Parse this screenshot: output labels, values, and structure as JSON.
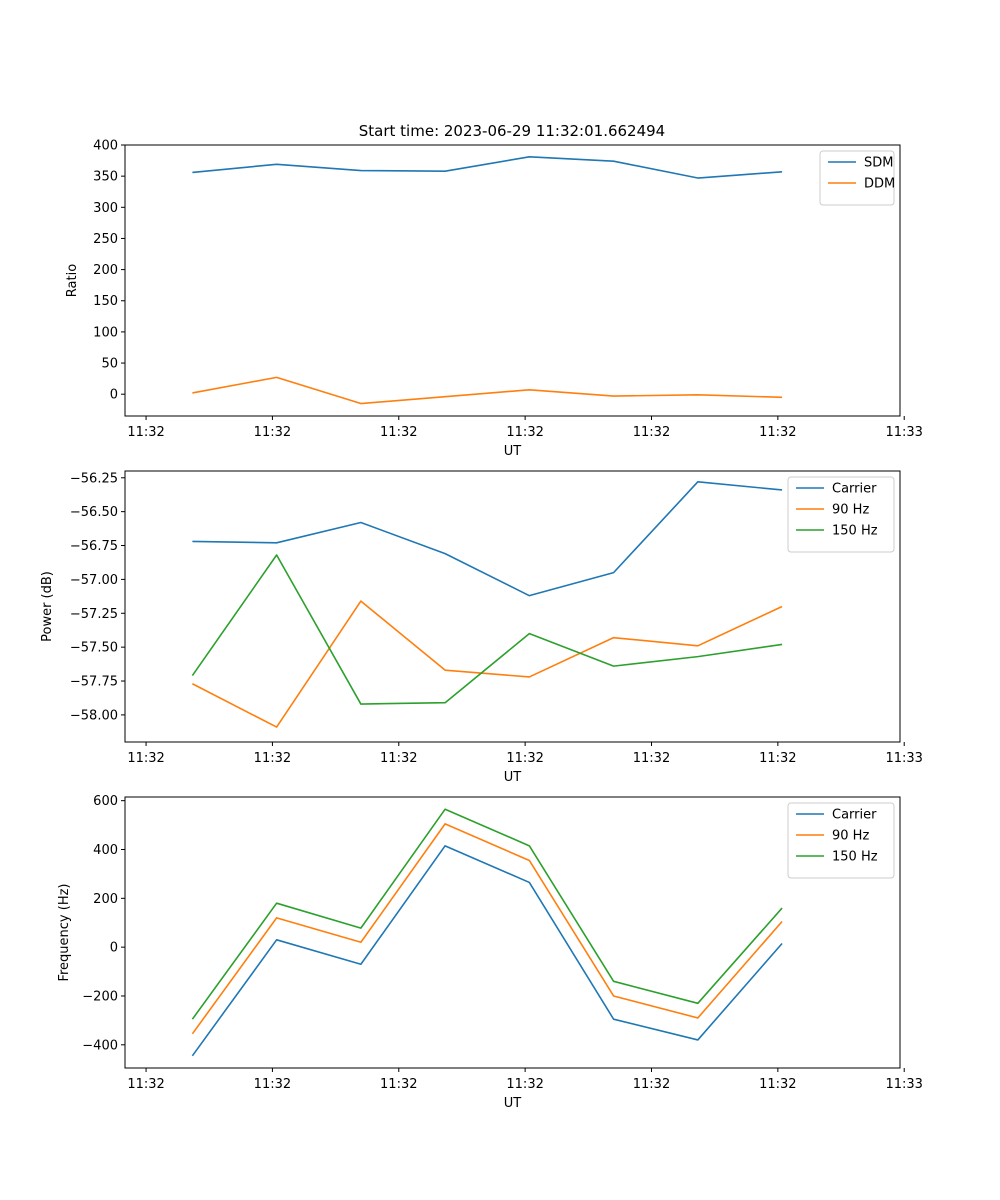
{
  "figure": {
    "title": "Start time: 2023-06-29 11:32:01.662494"
  },
  "colors": {
    "blue": "#1f77b4",
    "orange": "#ff7f0e",
    "green": "#2ca02c"
  },
  "chart_data": [
    {
      "type": "line",
      "title": "Start time: 2023-06-29 11:32:01.662494",
      "xlabel": "UT",
      "ylabel": "Ratio",
      "x": [
        1,
        2,
        3,
        4,
        5,
        6,
        7,
        8
      ],
      "xlim": [
        0.2,
        9.4
      ],
      "xticks": [
        0.45,
        1.95,
        3.45,
        4.95,
        6.45,
        7.95,
        9.45
      ],
      "xtick_labels": [
        "11:32",
        "11:32",
        "11:32",
        "11:32",
        "11:32",
        "11:32",
        "11:33"
      ],
      "ylim": [
        -35,
        400
      ],
      "yticks": [
        0,
        50,
        100,
        150,
        200,
        250,
        300,
        350,
        400
      ],
      "ytick_labels": [
        "0",
        "50",
        "100",
        "150",
        "200",
        "250",
        "300",
        "350",
        "400"
      ],
      "legend": "upper right",
      "series": [
        {
          "name": "SDM",
          "color": "#1f77b4",
          "values": [
            356,
            369,
            359,
            358,
            381,
            374,
            347,
            357
          ]
        },
        {
          "name": "DDM",
          "color": "#ff7f0e",
          "values": [
            2,
            27,
            -15,
            -4,
            7,
            -3,
            -1,
            -5
          ]
        }
      ]
    },
    {
      "type": "line",
      "xlabel": "UT",
      "ylabel": "Power (dB)",
      "x": [
        1,
        2,
        3,
        4,
        5,
        6,
        7,
        8
      ],
      "xlim": [
        0.2,
        9.4
      ],
      "xticks": [
        0.45,
        1.95,
        3.45,
        4.95,
        6.45,
        7.95,
        9.45
      ],
      "xtick_labels": [
        "11:32",
        "11:32",
        "11:32",
        "11:32",
        "11:32",
        "11:32",
        "11:33"
      ],
      "ylim": [
        -58.2,
        -56.2
      ],
      "yticks": [
        -58.0,
        -57.75,
        -57.5,
        -57.25,
        -57.0,
        -56.75,
        -56.5,
        -56.25
      ],
      "ytick_labels": [
        "−58.00",
        "−57.75",
        "−57.50",
        "−57.25",
        "−57.00",
        "−56.75",
        "−56.50",
        "−56.25"
      ],
      "legend": "upper right",
      "series": [
        {
          "name": "Carrier",
          "color": "#1f77b4",
          "values": [
            -56.72,
            -56.73,
            -56.58,
            -56.81,
            -57.12,
            -56.95,
            -56.28,
            -56.34
          ]
        },
        {
          "name": "90 Hz",
          "color": "#ff7f0e",
          "values": [
            -57.77,
            -58.09,
            -57.16,
            -57.67,
            -57.72,
            -57.43,
            -57.49,
            -57.2
          ]
        },
        {
          "name": "150 Hz",
          "color": "#2ca02c",
          "values": [
            -57.71,
            -56.82,
            -57.92,
            -57.91,
            -57.4,
            -57.64,
            -57.57,
            -57.48
          ]
        }
      ]
    },
    {
      "type": "line",
      "xlabel": "UT",
      "ylabel": "Frequency (Hz)",
      "x": [
        1,
        2,
        3,
        4,
        5,
        6,
        7,
        8
      ],
      "xlim": [
        0.2,
        9.4
      ],
      "xticks": [
        0.45,
        1.95,
        3.45,
        4.95,
        6.45,
        7.95,
        9.45
      ],
      "xtick_labels": [
        "11:32",
        "11:32",
        "11:32",
        "11:32",
        "11:32",
        "11:32",
        "11:33"
      ],
      "ylim": [
        -495,
        615
      ],
      "yticks": [
        -400,
        -200,
        0,
        200,
        400,
        600
      ],
      "ytick_labels": [
        "−400",
        "−200",
        "0",
        "200",
        "400",
        "600"
      ],
      "legend": "upper right",
      "series": [
        {
          "name": "Carrier",
          "color": "#1f77b4",
          "values": [
            -445,
            30,
            -70,
            415,
            265,
            -295,
            -380,
            15
          ]
        },
        {
          "name": "90 Hz",
          "color": "#ff7f0e",
          "values": [
            -355,
            120,
            20,
            505,
            355,
            -200,
            -290,
            105
          ]
        },
        {
          "name": "150 Hz",
          "color": "#2ca02c",
          "values": [
            -295,
            180,
            78,
            565,
            415,
            -140,
            -230,
            160
          ]
        }
      ]
    }
  ]
}
